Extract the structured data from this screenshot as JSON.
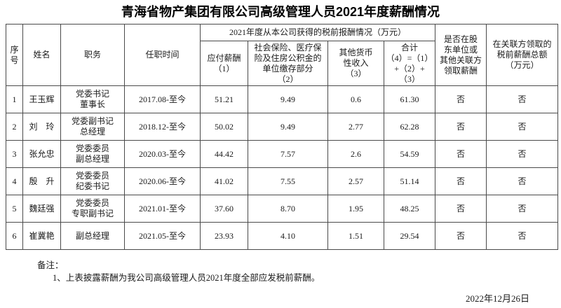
{
  "page": {
    "title": "青海省物产集团有限公司高级管理人员2021年度薪酬情况",
    "date": "2022年12月26日"
  },
  "table": {
    "headers": {
      "seq": "序\n号",
      "name": "姓名",
      "position": "职务",
      "tenure": "任职时间",
      "group": "2021年度从本公司获得的税前报酬情况（万元）",
      "payable": "应付薪酬\n（1）",
      "insurance": "社会保险、医疗保\n险及住房公积金的\n单位缴存部分\n（2）",
      "other_income": "其他货币\n性收入\n（3）",
      "total": "合计\n（4）=（1）\n+（2）+\n（3）",
      "related_party": "是否在股\n东单位或\n其他关联方\n领取薪酬",
      "related_amount": "在关联方领取的\n税前薪酬总额\n（万元）"
    },
    "rows": [
      [
        "1",
        "王玉辉",
        "党委书记\n董事长",
        "2017.08-至今",
        "51.21",
        "9.49",
        "0.6",
        "61.30",
        "否",
        "否"
      ],
      [
        "2",
        "刘　玲",
        "党委副书记\n总经理",
        "2018.12-至今",
        "50.02",
        "9.49",
        "2.77",
        "62.28",
        "否",
        "否"
      ],
      [
        "3",
        "张允忠",
        "党委委员\n副总经理",
        "2020.03-至今",
        "44.42",
        "7.57",
        "2.6",
        "54.59",
        "否",
        "否"
      ],
      [
        "4",
        "殷　升",
        "党委委员\n纪委书记",
        "2020.06-至今",
        "41.02",
        "7.55",
        "2.57",
        "51.14",
        "否",
        "否"
      ],
      [
        "5",
        "魏廷强",
        "党委委员\n专职副书记",
        "2021.01-至今",
        "37.60",
        "8.70",
        "1.95",
        "48.25",
        "否",
        "否"
      ],
      [
        "6",
        "崔冀艳",
        "副总经理",
        "2021.05-至今",
        "23.93",
        "4.10",
        "1.51",
        "29.54",
        "否",
        "否"
      ]
    ]
  },
  "notes": {
    "label": "备注：",
    "items": [
      "1、上表披露薪酬为我公司高级管理人员2021年度全部应发税前薪酬。"
    ]
  }
}
